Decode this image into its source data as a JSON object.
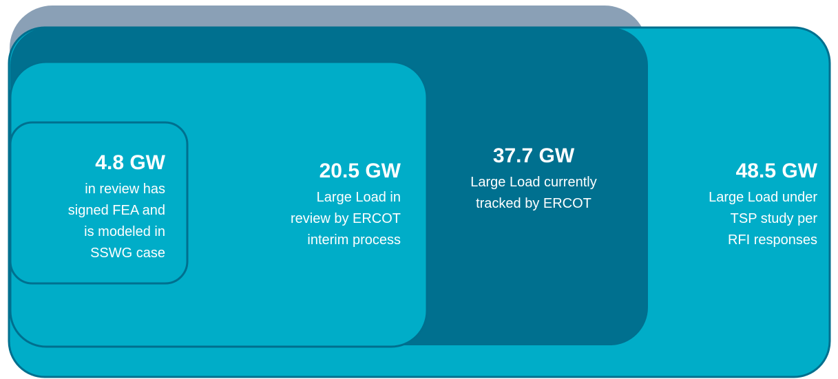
{
  "boxes": [
    {
      "value": "48.5 GW",
      "lines": [
        "Large Load under",
        "TSP study per",
        "RFI responses"
      ]
    },
    {
      "value": "37.7 GW",
      "lines": [
        "Large Load currently",
        "tracked by ERCOT"
      ]
    },
    {
      "value": "20.5 GW",
      "lines": [
        "Large Load in",
        "review by ERCOT",
        "interim process"
      ]
    },
    {
      "value": "4.8 GW",
      "lines": [
        "in review has",
        "signed FEA and",
        "is modeled in",
        "SSWG case"
      ]
    }
  ]
}
